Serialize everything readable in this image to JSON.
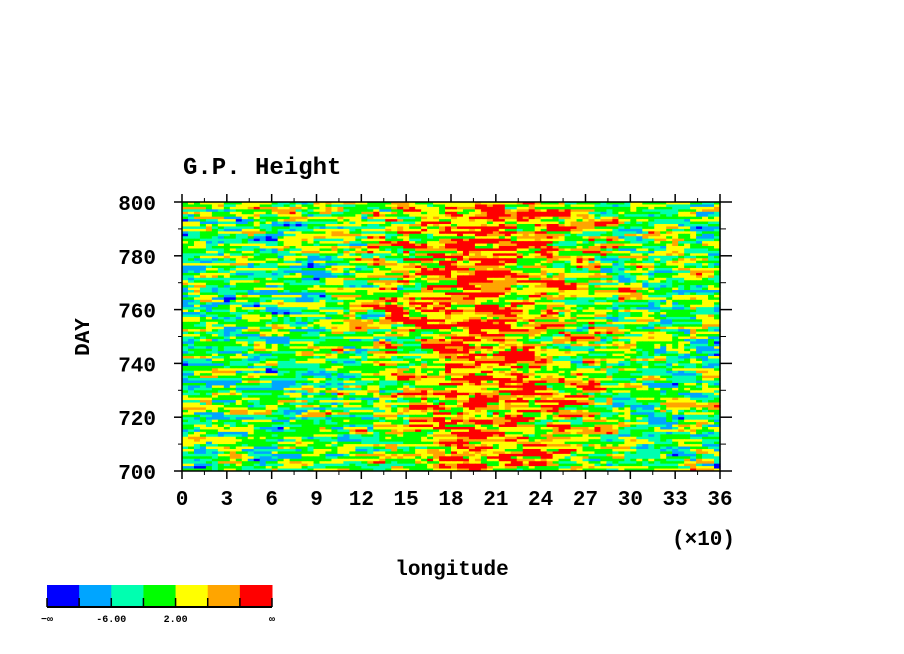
{
  "chart_data": {
    "type": "heatmap",
    "title": "G.P. Height",
    "xlabel": "longitude",
    "x_multiplier_label": "(×10)",
    "ylabel": "DAY",
    "xlim": [
      0,
      36
    ],
    "ylim": [
      700,
      800
    ],
    "x_ticks": [
      "0",
      "3",
      "6",
      "9",
      "12",
      "15",
      "18",
      "21",
      "24",
      "27",
      "30",
      "33",
      "36"
    ],
    "y_ticks": [
      "700",
      "720",
      "740",
      "760",
      "780",
      "800"
    ],
    "grid": false,
    "colorbar": {
      "placement": "bottom-left",
      "colors": [
        "#0000ff",
        "#00a5ff",
        "#00ffb0",
        "#00ff00",
        "#ffff00",
        "#ffa500",
        "#ff0000"
      ],
      "labels": [
        "−∞",
        "-6.00",
        "2.00",
        "∞"
      ]
    },
    "description_of_field": "noisy zonally-elongated anomalies; higher values (yellow/orange/red) concentrated between longitude 12 and 27 (×10)"
  }
}
